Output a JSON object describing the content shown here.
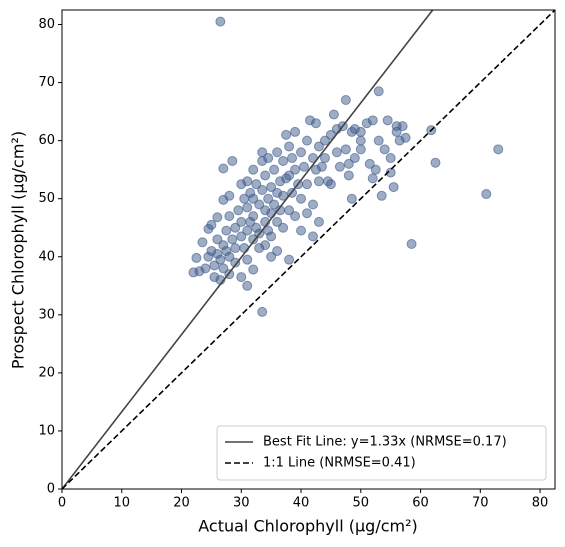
{
  "chart_data": {
    "type": "scatter",
    "x_label": "Actual Chlorophyll (µg/cm²)",
    "y_label": "Prospect Chlorophyll (µg/cm²)",
    "xlim": [
      0,
      82.5
    ],
    "ylim": [
      0,
      82.5
    ],
    "xticks": [
      0,
      10,
      20,
      30,
      40,
      50,
      60,
      70,
      80
    ],
    "yticks": [
      0,
      10,
      20,
      30,
      40,
      50,
      60,
      70,
      80
    ],
    "legend": "lower right",
    "series": [
      {
        "color": "#3d5a8a",
        "x": [
          22,
          22.5,
          23,
          23.5,
          24,
          24.5,
          24.5,
          25,
          25,
          25.5,
          25.5,
          26,
          26,
          26,
          26.5,
          26.5,
          27,
          27,
          27,
          27,
          27.5,
          27.5,
          28,
          28,
          28,
          28,
          28.5,
          28.5,
          29,
          29,
          29,
          29.5,
          30,
          30,
          30,
          30,
          30.5,
          30.5,
          31,
          31,
          31,
          31,
          31.5,
          31.5,
          32,
          32,
          32,
          32,
          32,
          32.5,
          32.5,
          33,
          33,
          33,
          33.5,
          33.5,
          33.5,
          33.5,
          34,
          34,
          34,
          34,
          34.5,
          34.5,
          34.5,
          35,
          35,
          35,
          35,
          35.5,
          35.5,
          36,
          36,
          36,
          36,
          36.5,
          36.5,
          37,
          37,
          37,
          37.5,
          37.5,
          38,
          38,
          38,
          38,
          38.5,
          38.5,
          39,
          39,
          39,
          39.5,
          40,
          40,
          40,
          40.5,
          41,
          41,
          41,
          41.5,
          42,
          42,
          42,
          42.5,
          42.5,
          43,
          43,
          43.5,
          44,
          44,
          45,
          45,
          45.5,
          46,
          46,
          46.5,
          47,
          47.5,
          47.5,
          48,
          48,
          48.5,
          48.5,
          49,
          49,
          50,
          50,
          51,
          51.5,
          52,
          52.5,
          53,
          53,
          53.5,
          54,
          54.5,
          55,
          55.5,
          56,
          56.5,
          57,
          57.5,
          58.5,
          61.8,
          62.5,
          71,
          73,
          26.5,
          55,
          52,
          43,
          44.5,
          31,
          56,
          50
        ],
        "values": [
          37.3,
          39.8,
          37.5,
          42.5,
          38,
          40,
          44.8,
          41,
          45.5,
          36.5,
          38.5,
          46.8,
          43,
          40.5,
          36,
          39.5,
          55.2,
          49.8,
          42,
          38,
          44.5,
          41,
          50.5,
          47,
          40,
          37,
          56.5,
          43,
          45,
          41.5,
          39,
          48,
          52.5,
          46,
          43.5,
          36.5,
          50,
          41.5,
          53,
          48.5,
          44.5,
          39.5,
          51,
          46,
          55,
          50,
          47,
          43,
          37.8,
          52.5,
          45,
          49,
          44,
          41.5,
          30.5,
          56.5,
          58,
          51.5,
          54,
          48,
          46,
          42,
          57,
          50,
          44.5,
          52,
          47.5,
          43.5,
          40,
          55,
          49,
          58,
          51,
          46,
          41,
          53,
          48,
          56.5,
          50.5,
          45,
          61,
          53.5,
          59,
          54,
          48,
          39.5,
          57,
          51,
          61.5,
          55,
          47,
          52.5,
          58,
          50,
          44.5,
          55.5,
          60,
          52.5,
          47.5,
          63.5,
          57,
          49,
          43.5,
          55,
          63,
          59,
          53,
          55.5,
          60,
          57,
          61,
          52.5,
          64.5,
          62,
          58,
          55.5,
          62.5,
          67,
          58.5,
          56,
          54,
          50,
          61.5,
          57,
          62,
          58.5,
          61.5,
          63,
          56,
          63.5,
          55,
          68.5,
          60,
          50.5,
          58.5,
          63.5,
          57,
          52,
          62.5,
          60,
          62.5,
          60.5,
          42.2,
          61.8,
          56.2,
          50.8,
          58.5,
          80.5,
          54.5,
          53.5,
          46,
          53,
          35,
          61.5,
          60
        ]
      }
    ],
    "lines": [
      {
        "name": "Best Fit Line: y=1.33x (NRMSE=0.17)",
        "slope": 1.33,
        "color": "#444444",
        "dash": "solid"
      },
      {
        "name": "1:1 Line (NRMSE=0.41)",
        "slope": 1,
        "color": "#000000",
        "dash": "dashed"
      }
    ]
  }
}
